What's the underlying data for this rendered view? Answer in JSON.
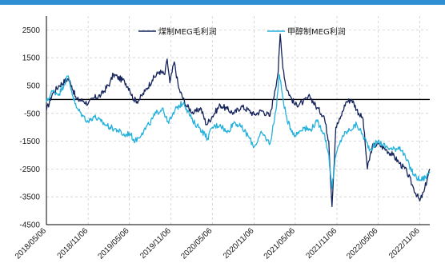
{
  "chart_data": {
    "type": "line",
    "title": "",
    "xlabel": "",
    "ylabel": "",
    "ylim": [
      -4500,
      3000
    ],
    "yticks": [
      2500,
      1500,
      500,
      -500,
      -1500,
      -2500,
      -3500,
      -4500
    ],
    "xticks": [
      "2018/05/06",
      "2018/11/06",
      "2019/05/06",
      "2019/11/06",
      "2020/05/06",
      "2020/11/06",
      "2021/05/06",
      "2021/11/06",
      "2022/05/06",
      "2022/11/06"
    ],
    "x_range": [
      "2018/05/06",
      "2022/12/20"
    ],
    "grid": true,
    "zero_line": true,
    "legend_position": "top",
    "colors": {
      "coal": "#14235c",
      "methanol": "#23b1dc",
      "axis": "#000000",
      "grid": "#cfcfcf",
      "border": "#2e8fd2"
    },
    "series": [
      {
        "name": "煤制MEG毛利润",
        "key": "coal",
        "points": [
          [
            "2018/05/06",
            -400
          ],
          [
            "2018/06/01",
            200
          ],
          [
            "2018/07/01",
            500
          ],
          [
            "2018/08/10",
            750
          ],
          [
            "2018/08/25",
            500
          ],
          [
            "2018/09/15",
            0
          ],
          [
            "2018/10/15",
            -50
          ],
          [
            "2018/11/06",
            -150
          ],
          [
            "2018/12/01",
            50
          ],
          [
            "2019/01/01",
            150
          ],
          [
            "2019/02/10",
            600
          ],
          [
            "2019/02/25",
            900
          ],
          [
            "2019/03/15",
            800
          ],
          [
            "2019/04/15",
            650
          ],
          [
            "2019/05/06",
            400
          ],
          [
            "2019/05/25",
            0
          ],
          [
            "2019/06/15",
            -50
          ],
          [
            "2019/07/15",
            300
          ],
          [
            "2019/08/15",
            700
          ],
          [
            "2019/09/15",
            1000
          ],
          [
            "2019/10/10",
            900
          ],
          [
            "2019/10/20",
            1450
          ],
          [
            "2019/11/01",
            600
          ],
          [
            "2019/11/20",
            1350
          ],
          [
            "2019/12/10",
            400
          ],
          [
            "2020/01/10",
            -200
          ],
          [
            "2020/02/15",
            -500
          ],
          [
            "2020/03/15",
            -300
          ],
          [
            "2020/04/10",
            -900
          ],
          [
            "2020/05/06",
            -600
          ],
          [
            "2020/06/10",
            -200
          ],
          [
            "2020/07/10",
            -350
          ],
          [
            "2020/08/10",
            -500
          ],
          [
            "2020/09/10",
            -250
          ],
          [
            "2020/10/15",
            -400
          ],
          [
            "2020/11/06",
            -550
          ],
          [
            "2020/12/10",
            -400
          ],
          [
            "2021/01/15",
            -600
          ],
          [
            "2021/02/05",
            300
          ],
          [
            "2021/02/20",
            1000
          ],
          [
            "2021/03/01",
            2350
          ],
          [
            "2021/03/10",
            1400
          ],
          [
            "2021/03/25",
            500
          ],
          [
            "2021/04/15",
            100
          ],
          [
            "2021/05/06",
            -200
          ],
          [
            "2021/06/10",
            -100
          ],
          [
            "2021/07/10",
            100
          ],
          [
            "2021/08/10",
            -300
          ],
          [
            "2021/09/10",
            -600
          ],
          [
            "2021/10/01",
            -1500
          ],
          [
            "2021/10/15",
            -3850
          ],
          [
            "2021/11/01",
            -1000
          ],
          [
            "2021/11/20",
            -700
          ],
          [
            "2021/12/15",
            -100
          ],
          [
            "2022/01/10",
            0
          ],
          [
            "2022/02/10",
            -500
          ],
          [
            "2022/03/01",
            -700
          ],
          [
            "2022/03/20",
            -2500
          ],
          [
            "2022/04/10",
            -1700
          ],
          [
            "2022/05/06",
            -1600
          ],
          [
            "2022/06/10",
            -1800
          ],
          [
            "2022/07/10",
            -2000
          ],
          [
            "2022/08/10",
            -2300
          ],
          [
            "2022/09/10",
            -2600
          ],
          [
            "2022/10/10",
            -3200
          ],
          [
            "2022/11/06",
            -3650
          ],
          [
            "2022/11/25",
            -3300
          ],
          [
            "2022/12/10",
            -2800
          ],
          [
            "2022/12/20",
            -2500
          ]
        ]
      },
      {
        "name": "甲醇制MEG利润",
        "key": "methanol",
        "points": [
          [
            "2018/05/06",
            -100
          ],
          [
            "2018/06/01",
            300
          ],
          [
            "2018/07/01",
            200
          ],
          [
            "2018/08/10",
            850
          ],
          [
            "2018/08/25",
            300
          ],
          [
            "2018/09/15",
            -300
          ],
          [
            "2018/10/15",
            -600
          ],
          [
            "2018/11/06",
            -800
          ],
          [
            "2018/12/01",
            -600
          ],
          [
            "2019/01/01",
            -800
          ],
          [
            "2019/02/10",
            -1000
          ],
          [
            "2019/03/15",
            -1100
          ],
          [
            "2019/04/15",
            -1300
          ],
          [
            "2019/05/06",
            -1200
          ],
          [
            "2019/06/01",
            -1500
          ],
          [
            "2019/07/01",
            -1200
          ],
          [
            "2019/08/01",
            -900
          ],
          [
            "2019/09/01",
            -500
          ],
          [
            "2019/10/01",
            -300
          ],
          [
            "2019/10/20",
            -800
          ],
          [
            "2019/11/06",
            -700
          ],
          [
            "2019/12/01",
            -300
          ],
          [
            "2020/01/01",
            -100
          ],
          [
            "2020/02/10",
            -800
          ],
          [
            "2020/03/10",
            -1000
          ],
          [
            "2020/04/15",
            -1400
          ],
          [
            "2020/05/06",
            -1000
          ],
          [
            "2020/06/10",
            -900
          ],
          [
            "2020/07/10",
            -1200
          ],
          [
            "2020/08/10",
            -800
          ],
          [
            "2020/09/10",
            -1000
          ],
          [
            "2020/10/10",
            -1300
          ],
          [
            "2020/11/06",
            -1700
          ],
          [
            "2020/12/10",
            -1200
          ],
          [
            "2021/01/15",
            -1600
          ],
          [
            "2021/02/10",
            -400
          ],
          [
            "2021/02/25",
            900
          ],
          [
            "2021/03/10",
            200
          ],
          [
            "2021/04/01",
            -800
          ],
          [
            "2021/05/06",
            -1300
          ],
          [
            "2021/06/10",
            -1000
          ],
          [
            "2021/07/10",
            -1100
          ],
          [
            "2021/08/10",
            -800
          ],
          [
            "2021/09/10",
            -1200
          ],
          [
            "2021/10/01",
            -2000
          ],
          [
            "2021/10/15",
            -3200
          ],
          [
            "2021/11/01",
            -2000
          ],
          [
            "2021/12/01",
            -1300
          ],
          [
            "2022/01/01",
            -1100
          ],
          [
            "2022/02/01",
            -900
          ],
          [
            "2022/03/01",
            -1300
          ],
          [
            "2022/04/01",
            -1800
          ],
          [
            "2022/05/06",
            -1500
          ],
          [
            "2022/06/10",
            -1700
          ],
          [
            "2022/07/10",
            -1800
          ],
          [
            "2022/08/10",
            -1700
          ],
          [
            "2022/09/10",
            -2200
          ],
          [
            "2022/10/10",
            -2700
          ],
          [
            "2022/11/06",
            -2900
          ],
          [
            "2022/12/01",
            -2800
          ],
          [
            "2022/12/20",
            -2600
          ]
        ]
      }
    ]
  }
}
